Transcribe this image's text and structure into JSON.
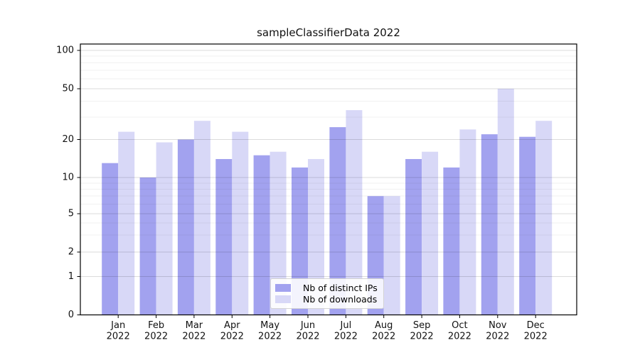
{
  "chart_data": {
    "type": "bar",
    "title": "sampleClassifierData 2022",
    "categories": [
      "Jan 2022",
      "Feb 2022",
      "Mar 2022",
      "Apr 2022",
      "May 2022",
      "Jun 2022",
      "Jul 2022",
      "Aug 2022",
      "Sep 2022",
      "Oct 2022",
      "Nov 2022",
      "Dec 2022"
    ],
    "series": [
      {
        "name": "Nb of distinct IPs",
        "color": "#a2a2ef",
        "values": [
          13,
          10,
          20,
          14,
          15,
          12,
          25,
          7,
          14,
          12,
          22,
          21
        ]
      },
      {
        "name": "Nb of downloads",
        "color": "#d8d8f7",
        "values": [
          23,
          19,
          28,
          23,
          16,
          14,
          34,
          7,
          16,
          24,
          50,
          28
        ]
      }
    ],
    "xlabel": "",
    "ylabel": "",
    "yscale": "symlog",
    "ylim": [
      0,
      110
    ],
    "yticks": [
      0,
      1,
      2,
      5,
      10,
      20,
      50,
      100
    ],
    "yticks_minor": [
      3,
      4,
      6,
      7,
      8,
      9,
      30,
      40,
      60,
      70,
      80,
      90
    ],
    "grid": true,
    "legend_position": "lower center"
  }
}
